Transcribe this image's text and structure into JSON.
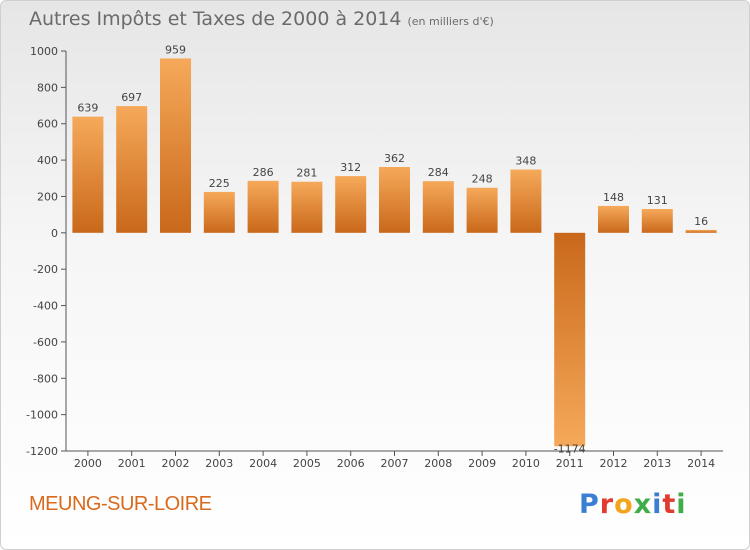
{
  "header": {
    "title": "Autres Impôts et Taxes de 2000 à 2014",
    "unit": "(en milliers d'€)"
  },
  "footer": {
    "town": "MEUNG-SUR-LOIRE",
    "logo_letters": [
      "P",
      "r",
      "o",
      "x",
      "i",
      "t",
      "i"
    ],
    "logo_colors": [
      "#3b7fd4",
      "#e23a2e",
      "#f2a51a",
      "#3fae49",
      "#3b7fd4",
      "#e23a2e",
      "#3fae49"
    ]
  },
  "chart_data": {
    "type": "bar",
    "title": "Autres Impôts et Taxes de 2000 à 2014",
    "unit": "(en milliers d'€)",
    "categories": [
      "2000",
      "2001",
      "2002",
      "2003",
      "2004",
      "2005",
      "2006",
      "2007",
      "2008",
      "2009",
      "2010",
      "2011",
      "2012",
      "2013",
      "2014"
    ],
    "values": [
      639,
      697,
      959,
      225,
      286,
      281,
      312,
      362,
      284,
      248,
      348,
      -1174,
      148,
      131,
      16
    ],
    "ylim": [
      -1200,
      1000
    ],
    "yticks": [
      1000,
      800,
      600,
      400,
      200,
      0,
      -200,
      -400,
      -600,
      -800,
      -1000,
      -1200
    ],
    "ytick_labels": [
      "1000",
      "800",
      "600",
      "400",
      "200",
      "0",
      "-200",
      "-400",
      "-600",
      "-800",
      "-1000",
      "-1200"
    ],
    "grid": false,
    "colors": {
      "bar_light": "#f6a95a",
      "bar_dark": "#c9681a",
      "axis": "#555555",
      "text": "#444444"
    }
  }
}
